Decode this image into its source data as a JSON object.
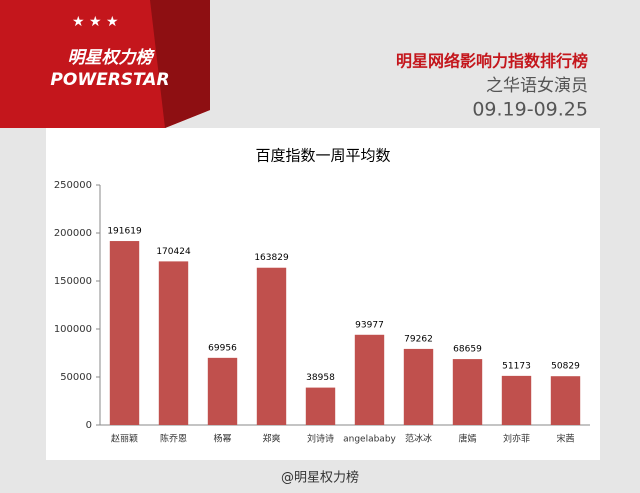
{
  "header": {
    "logo_cn": "明星权力榜",
    "logo_en": "POWERSTAR",
    "title": "明星网络影响力指数排行榜",
    "subtitle": "之华语女演员",
    "date_range": "09.19-09.25"
  },
  "footer": {
    "credit": "@明星权力榜"
  },
  "chart_data": {
    "type": "bar",
    "title": "百度指数一周平均数",
    "categories": [
      "赵丽颖",
      "陈乔恩",
      "杨幂",
      "郑爽",
      "刘诗诗",
      "angelababy",
      "范冰冰",
      "唐嫣",
      "刘亦菲",
      "宋茜"
    ],
    "values": [
      191619,
      170424,
      69956,
      163829,
      38958,
      93977,
      79262,
      68659,
      51173,
      50829
    ],
    "color": "#c0504d",
    "ylim": [
      0,
      250000
    ],
    "yticks": [
      0,
      50000,
      100000,
      150000,
      200000,
      250000
    ],
    "grid": false
  }
}
